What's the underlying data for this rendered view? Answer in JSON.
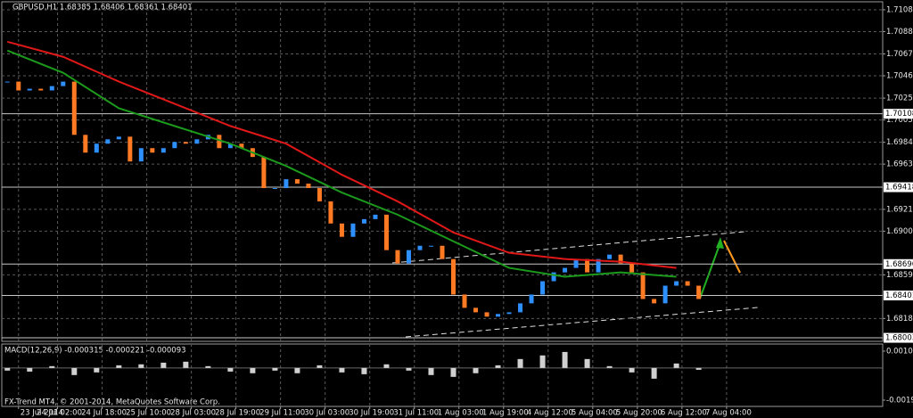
{
  "chart_data": [
    {
      "type": "line",
      "title": "GBPUSD,H1  1.68385 1.68406 1.68361 1.68401",
      "xlim": [
        -6,
        310
      ],
      "xticks": [
        {
          "value": 0,
          "label": "23 Jul 2014"
        },
        {
          "value": 14,
          "label": "24 Jul 02:00"
        },
        {
          "value": 30,
          "label": "24 Jul 18:00"
        },
        {
          "value": 46,
          "label": "25 Jul 10:00"
        },
        {
          "value": 62,
          "label": "28 Jul 03:00"
        },
        {
          "value": 78,
          "label": "28 Jul 19:00"
        },
        {
          "value": 94,
          "label": "29 Jul 11:00"
        },
        {
          "value": 110,
          "label": "30 Jul 03:00"
        },
        {
          "value": 126,
          "label": "30 Jul 19:00"
        },
        {
          "value": 142,
          "label": "31 Jul 11:00"
        },
        {
          "value": 158,
          "label": "1 Aug 03:00"
        },
        {
          "value": 174,
          "label": "1 Aug 19:00"
        },
        {
          "value": 190,
          "label": "4 Aug 12:00"
        },
        {
          "value": 206,
          "label": "5 Aug 04:00"
        },
        {
          "value": 222,
          "label": "5 Aug 20:00"
        },
        {
          "value": 238,
          "label": "6 Aug 12:00"
        },
        {
          "value": 254,
          "label": "7 Aug 04:00"
        }
      ],
      "ylim": [
        1.6797,
        1.7116
      ],
      "yticks": [
        1.71085,
        {
          "value": 1.7088,
          "label": "1.70880"
        },
        {
          "value": 1.7067,
          "label": "1.70670"
        },
        1.70465,
        1.70255,
        {
          "value": 1.7005,
          "label": "1.70050"
        },
        {
          "value": 1.6984,
          "label": "1.69840"
        },
        1.69635,
        {
          "value": 1.6921,
          "label": "1.69210"
        },
        1.69005,
        1.68595,
        1.68185
      ],
      "grid": true,
      "levels": [
        1.70108,
        1.69418,
        1.68696,
        1.68401,
        1.68003
      ],
      "series": [
        {
          "style": "candle",
          "color": "#2e8fff",
          "down_color": "#ff7a22",
          "x": [
            -4,
            0,
            4,
            8,
            12,
            16,
            20,
            24,
            28,
            32,
            36,
            40,
            44,
            48,
            52,
            56,
            60,
            64,
            68,
            72,
            76,
            80,
            84,
            88,
            92,
            96,
            100,
            104,
            108,
            112,
            116,
            120,
            124,
            128,
            132,
            136,
            140,
            144,
            148,
            152,
            156,
            160,
            164,
            168,
            172,
            176,
            180,
            184,
            188,
            192,
            196,
            200,
            204,
            208,
            212,
            216,
            220,
            224,
            228,
            232,
            236,
            240,
            244
          ],
          "values": [
            1.7041,
            1.70327,
            1.70343,
            1.70327,
            1.70368,
            1.7041,
            1.6991,
            1.69743,
            1.69827,
            1.69868,
            1.69893,
            1.6966,
            1.69785,
            1.69743,
            1.69785,
            1.69843,
            1.69827,
            1.69868,
            1.6991,
            1.69785,
            1.69827,
            1.69785,
            1.69702,
            1.6941,
            1.6941,
            1.69493,
            1.69452,
            1.6941,
            1.69285,
            1.69077,
            1.68952,
            1.69077,
            1.69118,
            1.6916,
            1.68827,
            1.68702,
            1.68827,
            1.68868,
            1.68868,
            1.68743,
            1.6841,
            1.68285,
            1.68243,
            1.68202,
            1.68227,
            1.68243,
            1.68327,
            1.6841,
            1.68535,
            1.68618,
            1.6866,
            1.68743,
            1.68618,
            1.68743,
            1.68785,
            1.68702,
            1.68618,
            1.68368,
            1.68327,
            1.68493,
            1.68535,
            1.68493,
            1.68368
          ]
        },
        {
          "style": "line",
          "color": "#e01818",
          "x": [
            -4,
            16,
            36,
            56,
            76,
            96,
            116,
            136,
            156,
            176,
            196,
            216,
            236
          ],
          "values": [
            1.70785,
            1.70643,
            1.7041,
            1.70202,
            1.69993,
            1.69827,
            1.69535,
            1.69285,
            1.68993,
            1.68802,
            1.68743,
            1.68718,
            1.6866
          ]
        },
        {
          "style": "line",
          "color": "#1c9a1c",
          "x": [
            -4,
            16,
            36,
            56,
            76,
            96,
            116,
            136,
            156,
            176,
            196,
            216,
            236
          ],
          "values": [
            1.70702,
            1.70493,
            1.7016,
            1.69993,
            1.69827,
            1.69618,
            1.69368,
            1.6916,
            1.6891,
            1.6866,
            1.68577,
            1.68618,
            1.68577
          ]
        }
      ]
    },
    {
      "type": "bar",
      "title": "MACD(12,26,9) -0.000315 -0.000221 -0.000093",
      "note": "FX-Trend MT4, © 2001-2014, MetaQuotes Software Corp.",
      "xlim": [
        -6,
        310
      ],
      "ylim": [
        -0.00233,
        0.00145
      ],
      "yticks": [
        0.00102,
        -0.00195
      ],
      "color": "#d0d0d0",
      "x": [
        -4,
        4,
        12,
        20,
        28,
        36,
        44,
        52,
        60,
        68,
        76,
        84,
        92,
        100,
        108,
        116,
        124,
        132,
        140,
        148,
        156,
        164,
        172,
        180,
        188,
        196,
        204,
        212,
        220,
        228,
        236,
        244
      ],
      "values": [
        -0.00016,
        -0.00022,
        0.00011,
        -0.00043,
        -0.00027,
        0.00016,
        0.00022,
        0.00032,
        0.00038,
        0.00011,
        -0.00022,
        -0.00032,
        -0.00016,
        -0.00032,
        0.00016,
        -0.00027,
        -0.00038,
        0.00022,
        -0.00016,
        -0.00043,
        -0.00054,
        -0.00032,
        0.00016,
        0.00054,
        0.00076,
        0.00097,
        0.00054,
        0.00011,
        -0.00027,
        -0.00065,
        0.00027,
        -0.00011
      ]
    }
  ]
}
